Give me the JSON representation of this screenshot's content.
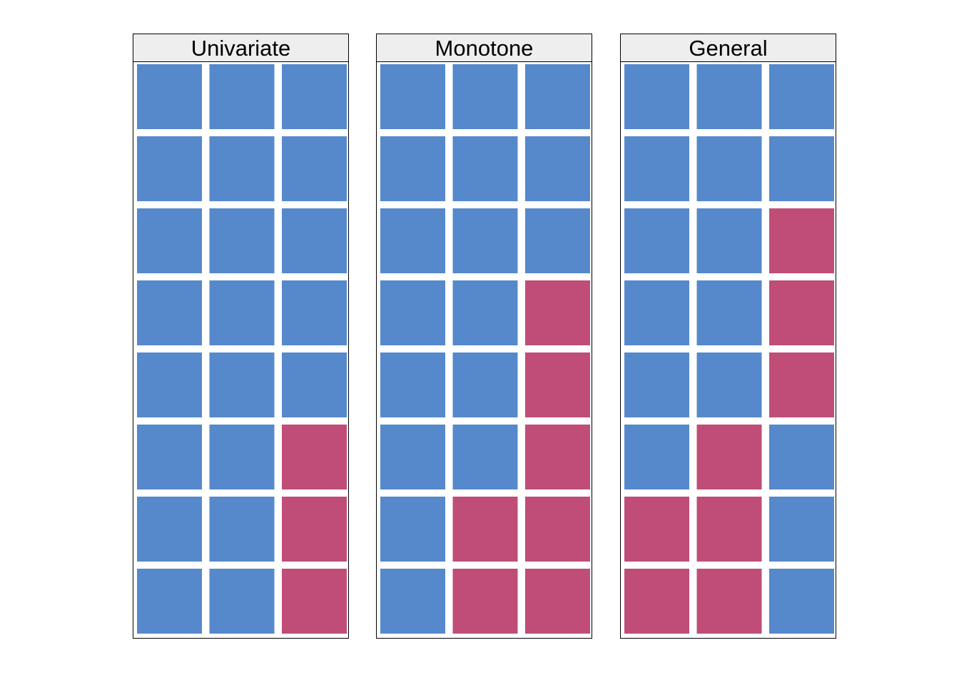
{
  "chart_data": {
    "type": "heatmap",
    "colors": {
      "blue": "#5589cb",
      "pink": "#c04d78"
    },
    "panels": [
      {
        "title": "Univariate",
        "grid": [
          [
            "blue",
            "blue",
            "blue"
          ],
          [
            "blue",
            "blue",
            "blue"
          ],
          [
            "blue",
            "blue",
            "blue"
          ],
          [
            "blue",
            "blue",
            "blue"
          ],
          [
            "blue",
            "blue",
            "blue"
          ],
          [
            "blue",
            "blue",
            "pink"
          ],
          [
            "blue",
            "blue",
            "pink"
          ],
          [
            "blue",
            "blue",
            "pink"
          ]
        ]
      },
      {
        "title": "Monotone",
        "grid": [
          [
            "blue",
            "blue",
            "blue"
          ],
          [
            "blue",
            "blue",
            "blue"
          ],
          [
            "blue",
            "blue",
            "blue"
          ],
          [
            "blue",
            "blue",
            "pink"
          ],
          [
            "blue",
            "blue",
            "pink"
          ],
          [
            "blue",
            "blue",
            "pink"
          ],
          [
            "blue",
            "pink",
            "pink"
          ],
          [
            "blue",
            "pink",
            "pink"
          ]
        ]
      },
      {
        "title": "General",
        "grid": [
          [
            "blue",
            "blue",
            "blue"
          ],
          [
            "blue",
            "blue",
            "blue"
          ],
          [
            "blue",
            "blue",
            "pink"
          ],
          [
            "blue",
            "blue",
            "pink"
          ],
          [
            "blue",
            "blue",
            "pink"
          ],
          [
            "blue",
            "pink",
            "blue"
          ],
          [
            "pink",
            "pink",
            "blue"
          ],
          [
            "pink",
            "pink",
            "blue"
          ]
        ]
      }
    ]
  }
}
